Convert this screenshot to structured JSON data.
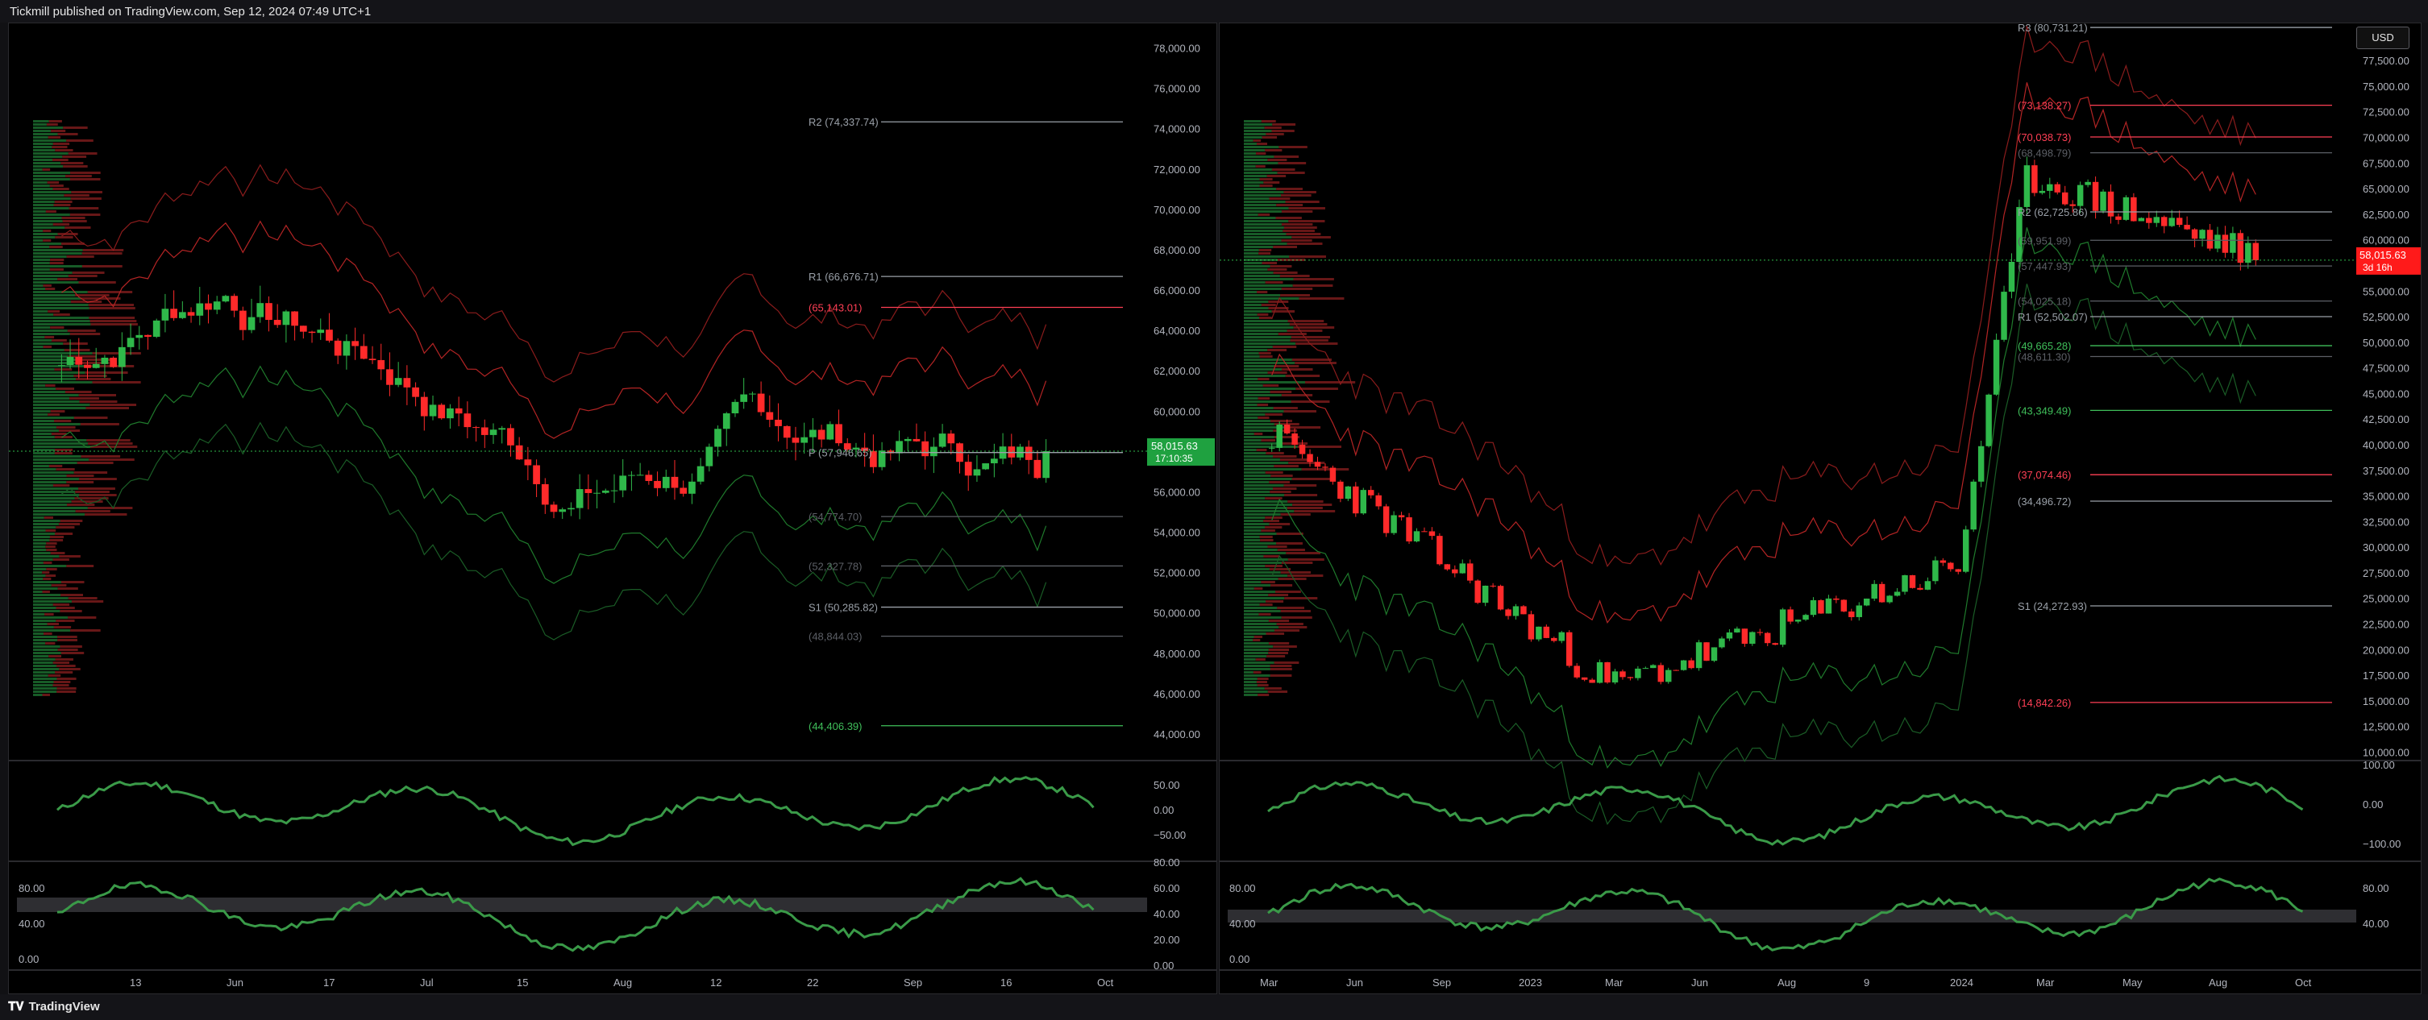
{
  "header": {
    "publisher_text": "Tickmill published on TradingView.com, Sep 12, 2024 07:49 UTC+1"
  },
  "footer": {
    "logo_text": "TradingView"
  },
  "currency_button": "USD",
  "left_chart": {
    "price_axis": [
      "78,000.00",
      "76,000.00",
      "74,000.00",
      "72,000.00",
      "70,000.00",
      "68,000.00",
      "66,000.00",
      "64,000.00",
      "62,000.00",
      "60,000.00",
      "58,000.00",
      "56,000.00",
      "54,000.00",
      "52,000.00",
      "50,000.00",
      "48,000.00",
      "46,000.00",
      "44,000.00"
    ],
    "price_min": 43000,
    "price_max": 78900,
    "current_price": "58,015.63",
    "countdown": "17:10:35",
    "pivot_labels": [
      {
        "text": "R2 (74,337.74)",
        "price": 74337.74,
        "color": "#9aa0a8"
      },
      {
        "text": "R1 (66,676.71)",
        "price": 66676.71,
        "color": "#9aa0a8"
      },
      {
        "text": "(65,143.01)",
        "price": 65143.01,
        "color": "#ff3f55"
      },
      {
        "text": "P (57,946.65)",
        "price": 57946.65,
        "color": "#9aa0a8"
      },
      {
        "text": "(54,774.70)",
        "price": 54774.7,
        "color": "#5c5f66"
      },
      {
        "text": "(52,327.78)",
        "price": 52327.78,
        "color": "#5c5f66"
      },
      {
        "text": "S1 (50,285.82)",
        "price": 50285.82,
        "color": "#9aa0a8"
      },
      {
        "text": "(48,844.03)",
        "price": 48844.03,
        "color": "#5c5f66"
      },
      {
        "text": "(44,406.39)",
        "price": 44406.39,
        "color": "#3fbf5a"
      }
    ],
    "time_axis": [
      "13",
      "Jun",
      "17",
      "Jul",
      "15",
      "Aug",
      "12",
      "22",
      "Sep",
      "16",
      "Oct"
    ],
    "osc1_axis": [
      "50.00",
      "0.00",
      "−50.00"
    ],
    "osc2_axis_left": [
      "80.00",
      "40.00",
      "0.00"
    ],
    "osc2_axis_right": [
      "80.00",
      "60.00",
      "40.00",
      "20.00",
      "0.00"
    ]
  },
  "right_chart": {
    "price_axis": [
      "77,500.00",
      "75,000.00",
      "72,500.00",
      "70,000.00",
      "67,500.00",
      "65,000.00",
      "62,500.00",
      "60,000.00",
      "57,500.00",
      "55,000.00",
      "52,500.00",
      "50,000.00",
      "47,500.00",
      "45,000.00",
      "42,500.00",
      "40,000.00",
      "37,500.00",
      "35,000.00",
      "32,500.00",
      "30,000.00",
      "27,500.00",
      "25,000.00",
      "22,500.00",
      "20,000.00",
      "17,500.00",
      "15,000.00",
      "12,500.00",
      "10,000.00"
    ],
    "price_min": 9800,
    "price_max": 80500,
    "current_price": "58,015.63",
    "countdown": "3d 16h",
    "pivot_labels": [
      {
        "text": "R3 (80,731.21)",
        "price": 80731.21,
        "color": "#9aa0a8"
      },
      {
        "text": "(73,138.27)",
        "price": 73138.27,
        "color": "#ff3f55"
      },
      {
        "text": "(68,498.79)",
        "price": 68498.79,
        "color": "#5c5f66"
      },
      {
        "text": "(70,038.73)",
        "price": 70038.73,
        "color": "#ff3f55"
      },
      {
        "text": "R2 (62,725.86)",
        "price": 62725.86,
        "color": "#9aa0a8"
      },
      {
        "text": "(59,951.99)",
        "price": 59951.99,
        "color": "#5c5f66"
      },
      {
        "text": "(57,447.93)",
        "price": 57447.93,
        "color": "#5c5f66"
      },
      {
        "text": "(54,025.18)",
        "price": 54025.18,
        "color": "#5c5f66"
      },
      {
        "text": "R1 (52,502.07)",
        "price": 52502.07,
        "color": "#9aa0a8"
      },
      {
        "text": "(49,665.28)",
        "price": 49665.28,
        "color": "#3fbf5a"
      },
      {
        "text": "(48,611.30)",
        "price": 48611.3,
        "color": "#5c5f66"
      },
      {
        "text": "(43,349.49)",
        "price": 43349.49,
        "color": "#3fbf5a"
      },
      {
        "text": "(37,074.46)",
        "price": 37074.46,
        "color": "#ff3f55"
      },
      {
        "text": "(34,496.72)",
        "price": 34496.72,
        "color": "#9aa0a8"
      },
      {
        "text": "S1 (24,272.93)",
        "price": 24272.93,
        "color": "#9aa0a8"
      },
      {
        "text": "(14,842.26)",
        "price": 14842.26,
        "color": "#ff3f55"
      }
    ],
    "time_axis": [
      "Mar",
      "Jun",
      "Sep",
      "2023",
      "Mar",
      "Jun",
      "Aug",
      "9",
      "2024",
      "Mar",
      "May",
      "Aug",
      "Oct"
    ],
    "osc1_axis": [
      "100.00",
      "0.00",
      "−100.00"
    ],
    "osc2_axis_left": [
      "80.00",
      "40.00",
      "0.00"
    ],
    "osc2_axis_right": [
      "80.00",
      "40.00"
    ]
  }
}
